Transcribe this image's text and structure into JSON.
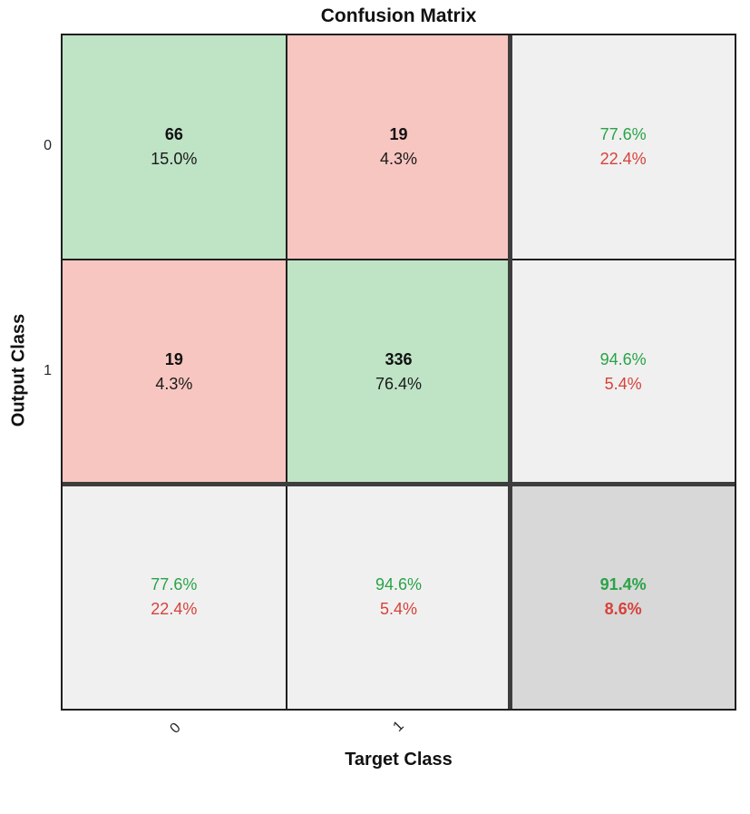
{
  "title": "Confusion Matrix",
  "axes": {
    "x_label": "Target Class",
    "y_label": "Output Class",
    "x_tick_labels": [
      "0",
      "1"
    ],
    "y_tick_labels": [
      "0",
      "1"
    ]
  },
  "grid": {
    "cells": [
      {
        "line1": "66",
        "line2": "15.0%"
      },
      {
        "line1": "19",
        "line2": "4.3%"
      },
      {
        "line1": "77.6%",
        "line2": "22.4%"
      },
      {
        "line1": "19",
        "line2": "4.3%"
      },
      {
        "line1": "336",
        "line2": "76.4%"
      },
      {
        "line1": "94.6%",
        "line2": "5.4%"
      },
      {
        "line1": "77.6%",
        "line2": "22.4%"
      },
      {
        "line1": "94.6%",
        "line2": "5.4%"
      },
      {
        "line1": "91.4%",
        "line2": "8.6%"
      }
    ]
  },
  "colors": {
    "correct_bg": "#bee3c5",
    "incorrect_bg": "#f7c6c0",
    "summary_bg": "#f0f0f0",
    "total_bg": "#d8d8d8",
    "positive_text": "#2aa347",
    "negative_text": "#d6423a",
    "thin_line": "#1f1f1f",
    "thick_line": "#3d3d3d"
  },
  "chart_data": {
    "type": "heatmap",
    "title": "Confusion Matrix",
    "xlabel": "Target Class",
    "ylabel": "Output Class",
    "classes": [
      "0",
      "1"
    ],
    "matrix_counts": [
      [
        66,
        19
      ],
      [
        19,
        336
      ]
    ],
    "matrix_percent_of_total": [
      [
        15.0,
        4.3
      ],
      [
        4.3,
        76.4
      ]
    ],
    "output_class_summary": [
      {
        "correct_pct": 77.6,
        "incorrect_pct": 22.4
      },
      {
        "correct_pct": 94.6,
        "incorrect_pct": 5.4
      }
    ],
    "target_class_summary": [
      {
        "correct_pct": 77.6,
        "incorrect_pct": 22.4
      },
      {
        "correct_pct": 94.6,
        "incorrect_pct": 5.4
      }
    ],
    "overall_accuracy_pct": 91.4,
    "overall_error_pct": 8.6,
    "legend_position": "none",
    "grid": "on",
    "x_tick_rotation_deg": 45
  }
}
